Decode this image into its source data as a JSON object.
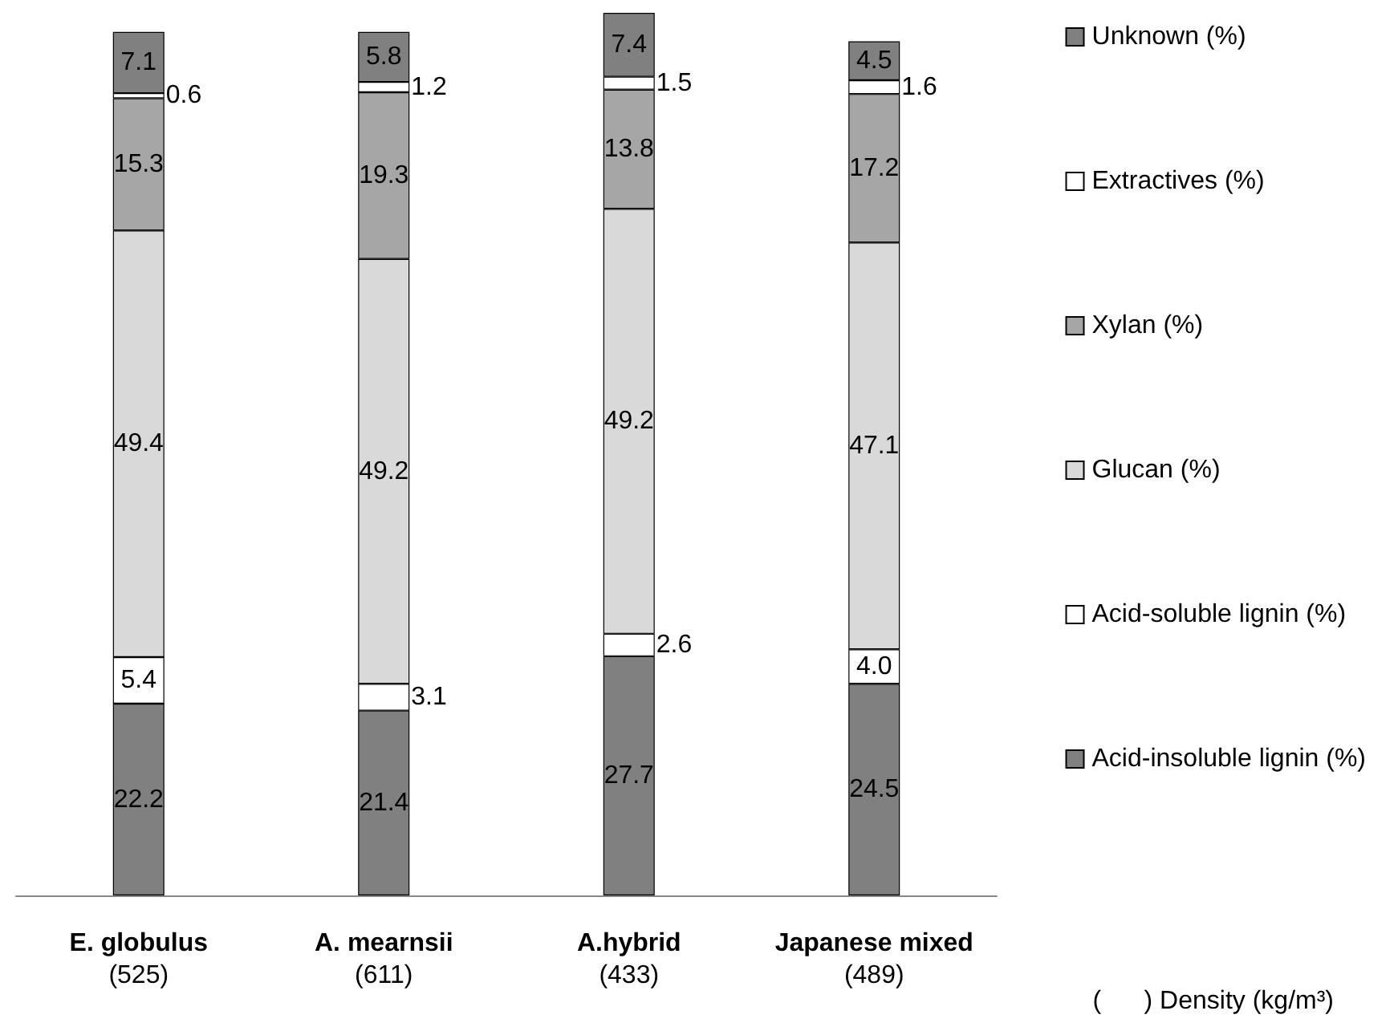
{
  "chart_data": {
    "type": "bar",
    "stacked": true,
    "legend": "right",
    "tick_labels": "x",
    "categories": [
      "E. globulus\n(525)",
      "A. mearnsii\n(611)",
      "A.hybrid\n(433)",
      "Japanese mixed\n(489)"
    ],
    "series": [
      {
        "name": "Acid-insoluble lignin (%)",
        "color": "#808080",
        "values": [
          22.2,
          21.4,
          27.7,
          24.5
        ],
        "value_labels": [
          "22.2",
          "21.4",
          "27.7",
          "24.5"
        ]
      },
      {
        "name": "Acid-soluble lignin (%)",
        "color": "#ffffff",
        "values": [
          5.4,
          3.1,
          2.6,
          4.0
        ],
        "value_labels": [
          "5.4",
          "3.1",
          "2.6",
          "4.0"
        ]
      },
      {
        "name": "Glucan (%)",
        "color": "#d9d9d9",
        "values": [
          49.4,
          49.2,
          49.2,
          47.1
        ],
        "value_labels": [
          "49.4",
          "49.2",
          "49.2",
          "47.1"
        ]
      },
      {
        "name": "Xylan (%)",
        "color": "#a6a6a6",
        "values": [
          15.3,
          19.3,
          13.8,
          17.2
        ],
        "value_labels": [
          "15.3",
          "19.3",
          "13.8",
          "17.2"
        ]
      },
      {
        "name": "Extractives (%)",
        "color": "#ffffff",
        "values": [
          0.6,
          1.2,
          1.5,
          1.6
        ],
        "value_labels": [
          "0.6",
          "1.2",
          "1.5",
          "1.6"
        ]
      },
      {
        "name": "Unknown (%)",
        "color": "#808080",
        "values": [
          7.1,
          5.8,
          7.4,
          4.5
        ],
        "value_labels": [
          "7.1",
          "5.8",
          "7.4",
          "4.5"
        ]
      }
    ],
    "annotations": [
      "(      ) Density (kg/m³)"
    ]
  }
}
